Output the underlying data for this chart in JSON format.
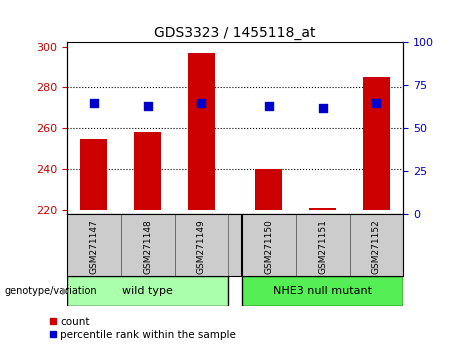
{
  "title": "GDS3323 / 1455118_at",
  "categories": [
    "GSM271147",
    "GSM271148",
    "GSM271149",
    "GSM271150",
    "GSM271151",
    "GSM271152"
  ],
  "bar_values": [
    255,
    258,
    297,
    240,
    221,
    285
  ],
  "bar_bottom": 220,
  "percentile_values": [
    65,
    63,
    65,
    63,
    62,
    65
  ],
  "ylim_left": [
    218,
    302
  ],
  "ylim_right": [
    0,
    100
  ],
  "yticks_left": [
    220,
    240,
    260,
    280,
    300
  ],
  "yticks_right": [
    0,
    25,
    50,
    75,
    100
  ],
  "bar_color": "#cc0000",
  "percentile_color": "#0000cc",
  "group1_label": "wild type",
  "group2_label": "NHE3 null mutant",
  "group1_indices": [
    0,
    1,
    2
  ],
  "group2_indices": [
    3,
    4,
    5
  ],
  "group_label_prefix": "genotype/variation",
  "group1_color": "#aaffaa",
  "group2_color": "#55ee55",
  "legend_count_label": "count",
  "legend_pct_label": "percentile rank within the sample",
  "xlabel_area_color": "#cccccc",
  "bar_width": 0.5,
  "gap_positions": [
    2.75
  ],
  "xlim": [
    -0.5,
    5.75
  ]
}
